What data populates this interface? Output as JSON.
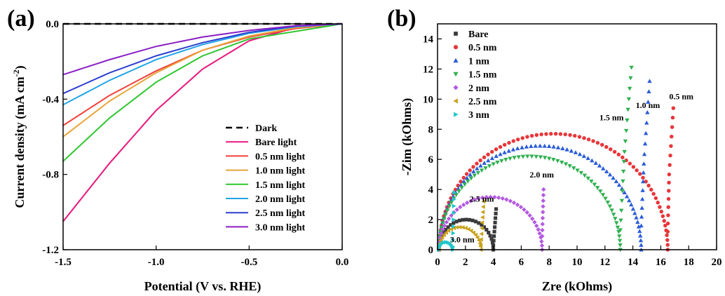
{
  "chart_data": [
    {
      "panel": "(a)",
      "type": "line",
      "xlabel": "Potential (V vs. RHE)",
      "ylabel_main": "Current density (mA cm",
      "ylabel_sup": "-2",
      "ylabel_end": ")",
      "xlim": [
        -1.5,
        0.0
      ],
      "ylim": [
        -1.2,
        0.0
      ],
      "xticks": [
        -1.5,
        -1.0,
        -0.5,
        0.0
      ],
      "xtick_labels": [
        "-1.5",
        "-1.0",
        "-0.5",
        "0.0"
      ],
      "yticks": [
        -1.2,
        -0.8,
        -0.4,
        0.0
      ],
      "ytick_labels": [
        "-1.2",
        "-0.8",
        "-0.4",
        "0.0"
      ],
      "legend_position": "bottom-right",
      "series": [
        {
          "name": "Dark",
          "color": "#000000",
          "dashed": true,
          "x": [
            -1.5,
            0.0
          ],
          "y": [
            0.0,
            0.0
          ]
        },
        {
          "name": "Bare light",
          "color": "#e8167c",
          "x": [
            -1.5,
            -1.25,
            -1.0,
            -0.75,
            -0.5,
            -0.25,
            0.0
          ],
          "y": [
            -1.05,
            -0.74,
            -0.46,
            -0.24,
            -0.09,
            -0.02,
            0.0
          ]
        },
        {
          "name": "0.5 nm light",
          "color": "#f0413b",
          "x": [
            -1.5,
            -1.25,
            -1.0,
            -0.75,
            -0.5,
            -0.25,
            0.0
          ],
          "y": [
            -0.54,
            -0.38,
            -0.25,
            -0.14,
            -0.07,
            -0.025,
            0.0
          ]
        },
        {
          "name": "1.0 nm light",
          "color": "#e8a43a",
          "x": [
            -1.5,
            -1.25,
            -1.0,
            -0.75,
            -0.5,
            -0.25,
            0.0
          ],
          "y": [
            -0.6,
            -0.41,
            -0.26,
            -0.14,
            -0.065,
            -0.02,
            0.0
          ]
        },
        {
          "name": "1.5 nm light",
          "color": "#2fc62f",
          "x": [
            -1.5,
            -1.25,
            -1.0,
            -0.75,
            -0.5,
            -0.25,
            0.0
          ],
          "y": [
            -0.73,
            -0.5,
            -0.31,
            -0.17,
            -0.08,
            -0.04,
            0.0
          ]
        },
        {
          "name": "2.0 nm light",
          "color": "#22a5e6",
          "x": [
            -1.5,
            -1.25,
            -1.0,
            -0.75,
            -0.5,
            -0.25,
            0.0
          ],
          "y": [
            -0.43,
            -0.3,
            -0.19,
            -0.11,
            -0.05,
            -0.015,
            0.0
          ]
        },
        {
          "name": "2.5 nm light",
          "color": "#2d3fd0",
          "x": [
            -1.5,
            -1.25,
            -1.0,
            -0.75,
            -0.5,
            -0.25,
            0.0
          ],
          "y": [
            -0.37,
            -0.26,
            -0.17,
            -0.1,
            -0.045,
            -0.012,
            0.0
          ]
        },
        {
          "name": "3.0 nm light",
          "color": "#8a1fc4",
          "x": [
            -1.5,
            -1.25,
            -1.0,
            -0.75,
            -0.5,
            -0.25,
            0.0
          ],
          "y": [
            -0.27,
            -0.19,
            -0.12,
            -0.07,
            -0.035,
            -0.01,
            0.0
          ]
        }
      ]
    },
    {
      "panel": "(b)",
      "type": "scatter",
      "xlabel": "Zre (kOhms)",
      "ylabel": "-Zim (kOhms)",
      "xlim": [
        0,
        20
      ],
      "ylim": [
        0,
        15
      ],
      "xticks": [
        0,
        2,
        4,
        6,
        8,
        10,
        12,
        14,
        16,
        18,
        20
      ],
      "xtick_labels": [
        "0",
        "2",
        "4",
        "6",
        "8",
        "10",
        "12",
        "14",
        "16",
        "18",
        "20"
      ],
      "yticks": [
        0,
        2,
        4,
        6,
        8,
        10,
        12,
        14
      ],
      "ytick_labels": [
        "0",
        "2",
        "4",
        "6",
        "8",
        "10",
        "12",
        "14"
      ],
      "legend_position": "top-left",
      "series": [
        {
          "name": "Bare",
          "color": "#3a3a3a",
          "marker": "square",
          "arc": {
            "x0": 0.1,
            "x1": 4.0,
            "peak": 2.0,
            "points": 26
          },
          "tail": {
            "x": [
              4.0,
              4.1,
              4.2
            ],
            "y": [
              0.3,
              1.5,
              2.7
            ],
            "points": 8
          }
        },
        {
          "name": "0.5 nm",
          "color": "#e8363a",
          "marker": "circle",
          "arc": {
            "x0": 0.1,
            "x1": 16.5,
            "peak": 7.7,
            "points": 75
          },
          "tail": {
            "x": [
              16.5,
              16.6,
              16.9
            ],
            "y": [
              1.2,
              5.0,
              9.4
            ],
            "points": 14
          }
        },
        {
          "name": "1 nm",
          "color": "#2a5bd8",
          "marker": "triangle-up",
          "arc": {
            "x0": 0.1,
            "x1": 14.6,
            "peak": 6.9,
            "points": 70
          },
          "tail": {
            "x": [
              14.6,
              14.8,
              15.2
            ],
            "y": [
              1.6,
              6.0,
              11.2
            ],
            "points": 15
          }
        },
        {
          "name": "1.5 nm",
          "color": "#2fb04f",
          "marker": "triangle-down",
          "arc": {
            "x0": 0.1,
            "x1": 13.1,
            "peak": 6.2,
            "points": 65
          },
          "tail": {
            "x": [
              13.1,
              13.4,
              13.9
            ],
            "y": [
              1.3,
              6.5,
              12.1
            ],
            "points": 16
          }
        },
        {
          "name": "2 nm",
          "color": "#b45ae0",
          "marker": "diamond",
          "arc": {
            "x0": 0.1,
            "x1": 7.5,
            "peak": 3.5,
            "points": 40
          },
          "tail": {
            "x": [
              7.5,
              7.55,
              7.6
            ],
            "y": [
              0.9,
              2.5,
              4.0
            ],
            "points": 8
          }
        },
        {
          "name": "2.5 nm",
          "color": "#c8a21c",
          "marker": "triangle-left",
          "arc": {
            "x0": 0.1,
            "x1": 3.1,
            "peak": 1.5,
            "points": 22
          },
          "tail": {
            "x": [
              3.1,
              3.2,
              3.3
            ],
            "y": [
              0.3,
              1.8,
              3.2
            ],
            "points": 8
          }
        },
        {
          "name": "3 nm",
          "color": "#1ec6cc",
          "marker": "triangle-right",
          "arc": {
            "x0": 0.1,
            "x1": 1.1,
            "peak": 0.5,
            "points": 12
          },
          "tail": {
            "x": [
              1.1,
              1.15,
              1.2
            ],
            "y": [
              0.2,
              2.0,
              3.8
            ],
            "points": 8
          }
        }
      ],
      "annotations": [
        {
          "text": "0.5 nm",
          "x": 16.6,
          "y": 10.0
        },
        {
          "text": "1.0 nm",
          "x": 14.2,
          "y": 9.4
        },
        {
          "text": "1.5 nm",
          "x": 11.6,
          "y": 8.6
        },
        {
          "text": "2.0 nm",
          "x": 6.6,
          "y": 4.8
        },
        {
          "text": "2.5 nm",
          "x": 2.3,
          "y": 3.2
        },
        {
          "text": "3.0 nm",
          "x": 0.9,
          "y": 0.5
        }
      ]
    }
  ]
}
